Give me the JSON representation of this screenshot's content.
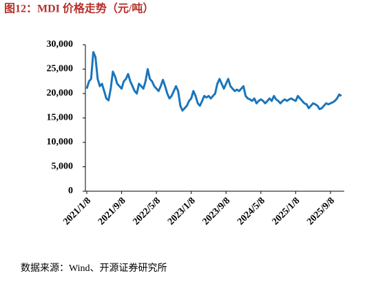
{
  "chart_data": {
    "type": "line",
    "title": "图12：MDI 价格走势（元/吨）",
    "source": "数据来源：Wind、开源证券研究所",
    "categories": [
      "2021/1/8",
      null,
      null,
      null,
      null,
      null,
      null,
      null,
      null,
      null,
      null,
      null,
      null,
      null,
      null,
      null,
      "2021/9/8",
      null,
      null,
      null,
      null,
      null,
      null,
      null,
      null,
      null,
      null,
      null,
      null,
      null,
      null,
      null,
      "2022/5/8",
      null,
      null,
      null,
      null,
      null,
      null,
      null,
      null,
      null,
      null,
      null,
      null,
      null,
      null,
      null,
      "2023/1/8",
      null,
      null,
      null,
      null,
      null,
      null,
      null,
      null,
      null,
      null,
      null,
      null,
      null,
      null,
      null,
      "2023/9/8",
      null,
      null,
      null,
      null,
      null,
      null,
      null,
      null,
      null,
      null,
      null,
      null,
      null,
      null,
      null,
      "2024/5/8",
      null,
      null,
      null,
      null,
      null,
      null,
      null,
      null,
      null,
      null,
      null,
      null,
      null,
      null,
      null,
      "2025/1/8",
      null,
      null,
      null,
      null,
      null,
      null,
      null,
      null,
      null,
      null,
      null,
      null,
      null,
      null,
      null,
      "2025/9/8",
      null,
      null,
      null,
      null,
      null
    ],
    "series": [
      {
        "name": "MDI",
        "color": "#1a75bc",
        "values": [
          21000,
          22500,
          23000,
          28500,
          27500,
          23000,
          21500,
          22000,
          20500,
          19000,
          18600,
          21000,
          24500,
          23500,
          22000,
          21500,
          21000,
          22500,
          23000,
          24000,
          22500,
          21500,
          20500,
          20000,
          22000,
          21500,
          21000,
          22500,
          25000,
          23000,
          22500,
          21500,
          21000,
          20500,
          21500,
          22800,
          21500,
          20000,
          19000,
          19500,
          20500,
          21500,
          20500,
          17500,
          16500,
          17000,
          17500,
          18500,
          19000,
          20500,
          19500,
          18000,
          17500,
          18500,
          19500,
          19200,
          19500,
          19000,
          19500,
          20000,
          22000,
          23000,
          22000,
          21000,
          22000,
          23000,
          21500,
          21000,
          20500,
          20800,
          20500,
          21000,
          21500,
          19500,
          19000,
          18800,
          18500,
          19000,
          18000,
          18500,
          18800,
          18500,
          18000,
          18500,
          19000,
          18500,
          19500,
          18800,
          18500,
          18000,
          18500,
          18800,
          18500,
          18800,
          19000,
          18700,
          18500,
          19500,
          19000,
          18500,
          18000,
          17800,
          17000,
          17500,
          18000,
          17800,
          17500,
          16800,
          17000,
          17500,
          18000,
          17800,
          18000,
          18200,
          18500,
          19000,
          19800,
          19500
        ]
      }
    ],
    "ylim": [
      0,
      30000
    ],
    "yticks": [
      0,
      {
        "value": 5000,
        "label": "5,000"
      },
      {
        "value": 10000,
        "label": "10,000"
      },
      {
        "value": 15000,
        "label": "15,000"
      },
      {
        "value": 20000,
        "label": "20,000"
      },
      {
        "value": 25000,
        "label": "25,000"
      },
      {
        "value": 30000,
        "label": "30,000"
      }
    ],
    "grid": false
  }
}
